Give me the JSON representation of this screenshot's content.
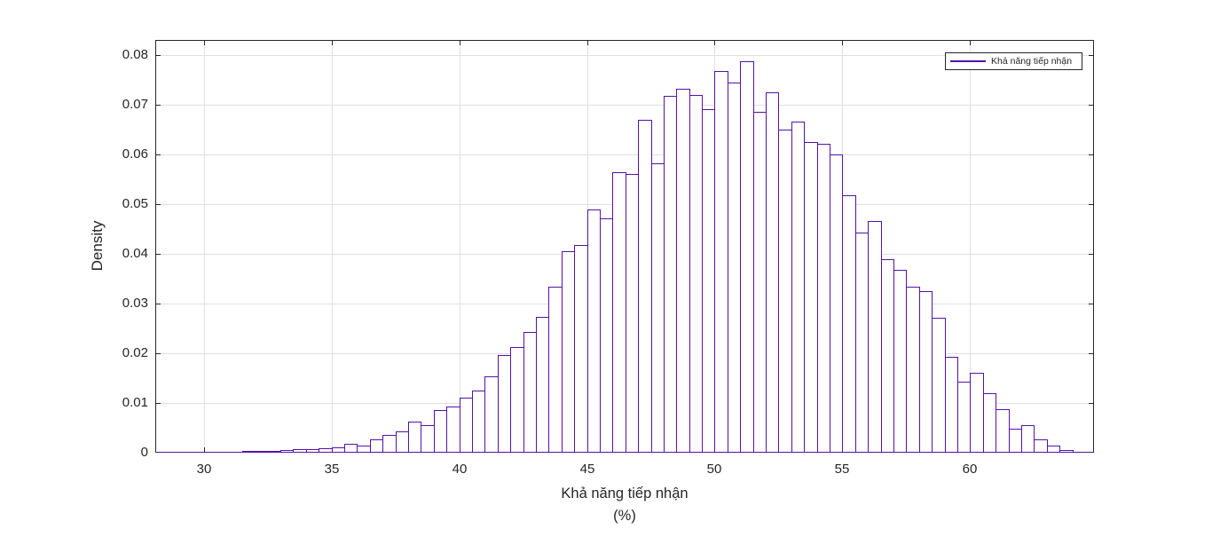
{
  "figure": {
    "background_color": "#ffffff",
    "axis_color": "#262626",
    "grid_color": "#e0e0e0",
    "text_color": "#262626",
    "bar_edge_color": "#5412a8",
    "bar_face_color": "#ffffff"
  },
  "chart_data": {
    "type": "bar",
    "subtype": "histogram-density",
    "title": "",
    "xlabel": "Khả năng tiếp nhận",
    "xlabel_unit": "(%)",
    "ylabel": "Density",
    "legend_label": "Khả năng tiếp nhận",
    "legend_position": "top-right",
    "grid": true,
    "xlim": [
      28.1,
      64.85
    ],
    "ylim": [
      0,
      0.083
    ],
    "xticks": [
      30,
      35,
      40,
      45,
      50,
      55,
      60
    ],
    "yticks": [
      0,
      0.01,
      0.02,
      0.03,
      0.04,
      0.05,
      0.06,
      0.07,
      0.08
    ],
    "bin_start": 31.0,
    "bin_width": 0.5,
    "densities": [
      0.0001,
      0.0003,
      0.0003,
      0.0004,
      0.0005,
      0.0007,
      0.0008,
      0.0009,
      0.0011,
      0.0018,
      0.0014,
      0.0026,
      0.0035,
      0.0042,
      0.0063,
      0.0055,
      0.0085,
      0.0092,
      0.0111,
      0.0125,
      0.0153,
      0.0196,
      0.0213,
      0.0243,
      0.0273,
      0.0334,
      0.0405,
      0.0417,
      0.0489,
      0.0471,
      0.0564,
      0.056,
      0.067,
      0.0582,
      0.0717,
      0.0732,
      0.0719,
      0.069,
      0.0767,
      0.0744,
      0.0787,
      0.0686,
      0.0724,
      0.0649,
      0.0665,
      0.0624,
      0.0622,
      0.0599,
      0.0518,
      0.0443,
      0.0466,
      0.0389,
      0.0367,
      0.0333,
      0.0324,
      0.0272,
      0.0193,
      0.0142,
      0.0161,
      0.0119,
      0.0087,
      0.0048,
      0.0055,
      0.0026,
      0.0014,
      0.0005,
      0.0002
    ]
  }
}
